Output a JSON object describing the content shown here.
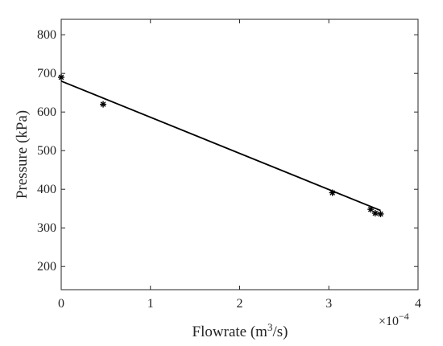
{
  "chart_data": {
    "type": "scatter",
    "xlabel": "Flowrate (m",
    "xlabel_sup": "3",
    "xlabel_tail": "/s)",
    "ylabel": "Pressure (kPa)",
    "x_exponent_base": "×10",
    "x_exponent": "−4",
    "xlim": [
      0,
      4
    ],
    "ylim": [
      140,
      840
    ],
    "x_ticks": [
      0,
      1,
      2,
      3,
      4
    ],
    "y_ticks": [
      200,
      300,
      400,
      500,
      600,
      700,
      800
    ],
    "grid": false,
    "box": true,
    "marker": "asterisk",
    "series": [
      {
        "points": [
          {
            "x": 0.0,
            "y": 690
          },
          {
            "x": 0.47,
            "y": 620
          },
          {
            "x": 3.04,
            "y": 391
          },
          {
            "x": 3.47,
            "y": 348
          },
          {
            "x": 3.52,
            "y": 338
          },
          {
            "x": 3.58,
            "y": 336
          }
        ]
      }
    ],
    "fit_line": {
      "x": [
        0.0,
        3.58
      ],
      "y": [
        680,
        345
      ]
    },
    "colors": {
      "axis": "#262626",
      "data": "#000000",
      "background": "#ffffff"
    }
  }
}
